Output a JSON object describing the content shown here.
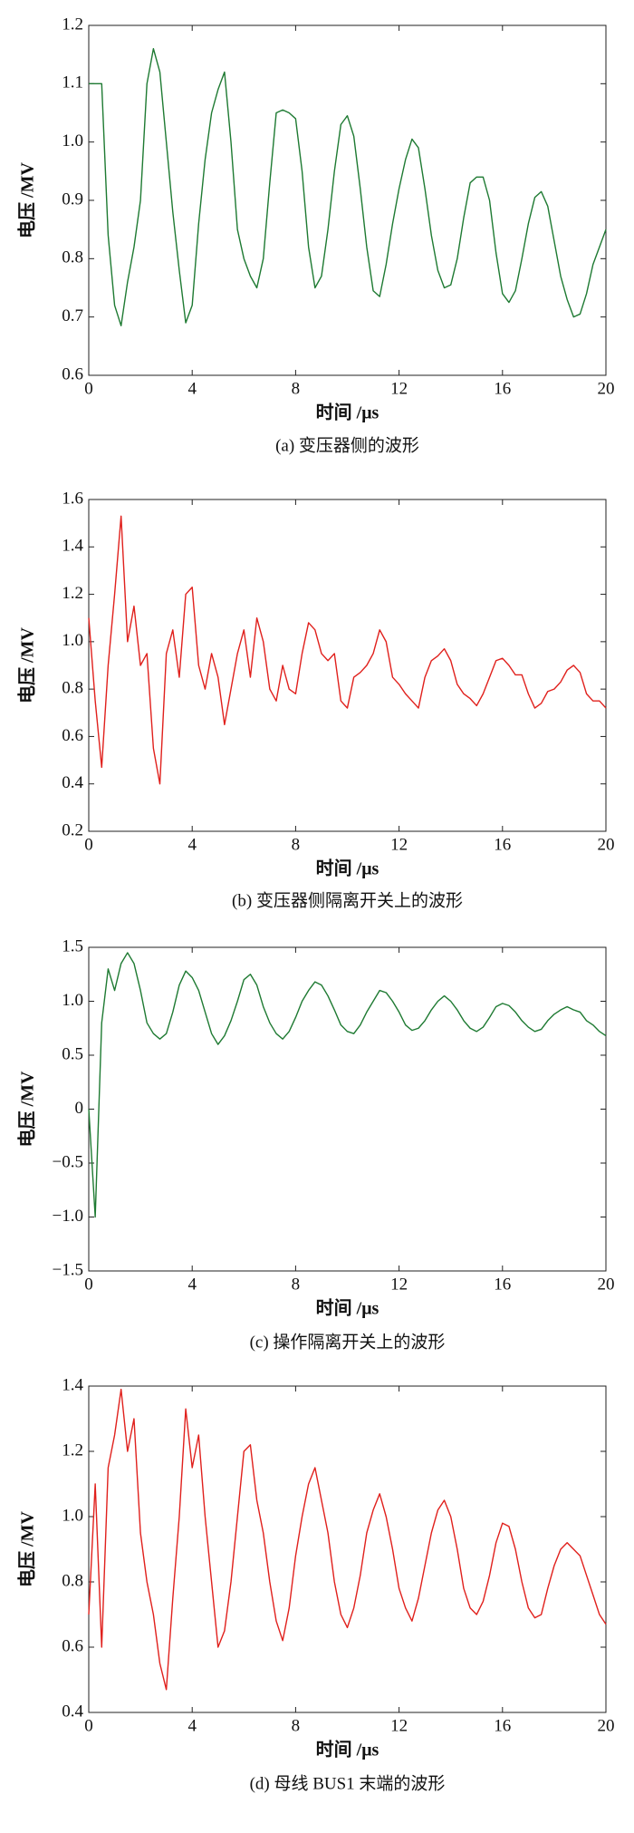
{
  "chart_data": [
    {
      "type": "line",
      "x_label": "时间 /μs",
      "y_label": "电压 /MV",
      "caption": "(a) 变压器侧的波形",
      "color": "#1e7a32",
      "xlim": [
        0,
        20
      ],
      "xticks": [
        0,
        4,
        8,
        12,
        16,
        20
      ],
      "ylim": [
        0.6,
        1.2
      ],
      "yticks": [
        0.6,
        0.7,
        0.8,
        0.9,
        {
          "value": 1.0,
          "label": "1.0"
        },
        1.1,
        1.2
      ],
      "x": [
        0,
        0.25,
        0.5,
        0.75,
        1,
        1.25,
        1.5,
        1.75,
        2,
        2.25,
        2.5,
        2.75,
        3,
        3.25,
        3.5,
        3.75,
        4,
        4.25,
        4.5,
        4.75,
        5,
        5.25,
        5.5,
        5.75,
        6,
        6.25,
        6.5,
        6.75,
        7,
        7.25,
        7.5,
        7.75,
        8,
        8.25,
        8.5,
        8.75,
        9,
        9.25,
        9.5,
        9.75,
        10,
        10.25,
        10.5,
        10.75,
        11,
        11.25,
        11.5,
        11.75,
        12,
        12.25,
        12.5,
        12.75,
        13,
        13.25,
        13.5,
        13.75,
        14,
        14.25,
        14.5,
        14.75,
        15,
        15.25,
        15.5,
        15.75,
        16,
        16.25,
        16.5,
        16.75,
        17,
        17.25,
        17.5,
        17.75,
        18,
        18.25,
        18.5,
        18.75,
        19,
        19.25,
        19.5,
        19.75,
        20
      ],
      "values": [
        1.1,
        1.1,
        1.1,
        0.84,
        0.72,
        0.685,
        0.76,
        0.82,
        0.9,
        1.1,
        1.16,
        1.12,
        1.0,
        0.88,
        0.78,
        0.69,
        0.72,
        0.86,
        0.97,
        1.05,
        1.09,
        1.12,
        1.0,
        0.85,
        0.8,
        0.77,
        0.75,
        0.8,
        0.93,
        1.05,
        1.055,
        1.05,
        1.04,
        0.95,
        0.82,
        0.75,
        0.77,
        0.85,
        0.95,
        1.03,
        1.045,
        1.01,
        0.92,
        0.82,
        0.745,
        0.735,
        0.79,
        0.86,
        0.92,
        0.97,
        1.005,
        0.99,
        0.92,
        0.84,
        0.78,
        0.75,
        0.755,
        0.8,
        0.87,
        0.93,
        0.94,
        0.94,
        0.9,
        0.81,
        0.74,
        0.725,
        0.745,
        0.8,
        0.86,
        0.905,
        0.915,
        0.89,
        0.83,
        0.77,
        0.73,
        0.7,
        0.705,
        0.74,
        0.79,
        0.82,
        0.85
      ]
    },
    {
      "type": "line",
      "x_label": "时间 /μs",
      "y_label": "电压 /MV",
      "caption": "(b) 变压器侧隔离开关上的波形",
      "color": "#e0201c",
      "xlim": [
        0,
        20
      ],
      "xticks": [
        0,
        4,
        8,
        12,
        16,
        20
      ],
      "ylim": [
        0.2,
        1.6
      ],
      "yticks": [
        0.2,
        0.4,
        0.6,
        0.8,
        {
          "value": 1.0,
          "label": "1.0"
        },
        1.2,
        1.4,
        1.6
      ],
      "x": [
        0,
        0.25,
        0.5,
        0.75,
        1,
        1.25,
        1.5,
        1.75,
        2,
        2.25,
        2.5,
        2.75,
        3,
        3.25,
        3.5,
        3.75,
        4,
        4.25,
        4.5,
        4.75,
        5,
        5.25,
        5.5,
        5.75,
        6,
        6.25,
        6.5,
        6.75,
        7,
        7.25,
        7.5,
        7.75,
        8,
        8.25,
        8.5,
        8.75,
        9,
        9.25,
        9.5,
        9.75,
        10,
        10.25,
        10.5,
        10.75,
        11,
        11.25,
        11.5,
        11.75,
        12,
        12.25,
        12.5,
        12.75,
        13,
        13.25,
        13.5,
        13.75,
        14,
        14.25,
        14.5,
        14.75,
        15,
        15.25,
        15.5,
        15.75,
        16,
        16.25,
        16.5,
        16.75,
        17,
        17.25,
        17.5,
        17.75,
        18,
        18.25,
        18.5,
        18.75,
        19,
        19.25,
        19.5,
        19.75,
        20
      ],
      "values": [
        1.1,
        0.75,
        0.47,
        0.9,
        1.2,
        1.53,
        1.0,
        1.15,
        0.9,
        0.95,
        0.55,
        0.4,
        0.95,
        1.05,
        0.85,
        1.2,
        1.23,
        0.9,
        0.8,
        0.95,
        0.85,
        0.65,
        0.8,
        0.95,
        1.05,
        0.85,
        1.1,
        1.0,
        0.8,
        0.75,
        0.9,
        0.8,
        0.78,
        0.95,
        1.08,
        1.05,
        0.95,
        0.92,
        0.95,
        0.75,
        0.72,
        0.85,
        0.87,
        0.9,
        0.95,
        1.05,
        1.0,
        0.85,
        0.82,
        0.78,
        0.75,
        0.72,
        0.85,
        0.92,
        0.94,
        0.97,
        0.92,
        0.82,
        0.78,
        0.76,
        0.73,
        0.78,
        0.85,
        0.92,
        0.93,
        0.9,
        0.86,
        0.86,
        0.78,
        0.72,
        0.74,
        0.79,
        0.8,
        0.83,
        0.88,
        0.9,
        0.87,
        0.78,
        0.75,
        0.75,
        0.72
      ]
    },
    {
      "type": "line",
      "x_label": "时间 /μs",
      "y_label": "电压 /MV",
      "caption": "(c) 操作隔离开关上的波形",
      "color": "#1e7a32",
      "xlim": [
        0,
        20
      ],
      "xticks": [
        0,
        4,
        8,
        12,
        16,
        20
      ],
      "ylim": [
        -1.5,
        1.5
      ],
      "yticks": [
        {
          "value": -1.5,
          "label": "−1.5"
        },
        {
          "value": -1.0,
          "label": "−1.0"
        },
        {
          "value": -0.5,
          "label": "−0.5"
        },
        0,
        0.5,
        {
          "value": 1.0,
          "label": "1.0"
        },
        1.5
      ],
      "x": [
        0,
        0.25,
        0.5,
        0.75,
        1,
        1.25,
        1.5,
        1.75,
        2,
        2.25,
        2.5,
        2.75,
        3,
        3.25,
        3.5,
        3.75,
        4,
        4.25,
        4.5,
        4.75,
        5,
        5.25,
        5.5,
        5.75,
        6,
        6.25,
        6.5,
        6.75,
        7,
        7.25,
        7.5,
        7.75,
        8,
        8.25,
        8.5,
        8.75,
        9,
        9.25,
        9.5,
        9.75,
        10,
        10.25,
        10.5,
        10.75,
        11,
        11.25,
        11.5,
        11.75,
        12,
        12.25,
        12.5,
        12.75,
        13,
        13.25,
        13.5,
        13.75,
        14,
        14.25,
        14.5,
        14.75,
        15,
        15.25,
        15.5,
        15.75,
        16,
        16.25,
        16.5,
        16.75,
        17,
        17.25,
        17.5,
        17.75,
        18,
        18.25,
        18.5,
        18.75,
        19,
        19.25,
        19.5,
        19.75,
        20
      ],
      "values": [
        0,
        -1.0,
        0.8,
        1.3,
        1.1,
        1.35,
        1.45,
        1.35,
        1.1,
        0.8,
        0.7,
        0.65,
        0.7,
        0.9,
        1.15,
        1.28,
        1.22,
        1.1,
        0.9,
        0.7,
        0.6,
        0.68,
        0.82,
        1.0,
        1.2,
        1.25,
        1.15,
        0.95,
        0.8,
        0.7,
        0.65,
        0.72,
        0.85,
        1.0,
        1.1,
        1.18,
        1.15,
        1.05,
        0.92,
        0.78,
        0.72,
        0.7,
        0.78,
        0.9,
        1.0,
        1.1,
        1.08,
        1.0,
        0.9,
        0.78,
        0.73,
        0.75,
        0.82,
        0.92,
        1.0,
        1.05,
        1.0,
        0.92,
        0.82,
        0.75,
        0.72,
        0.76,
        0.85,
        0.95,
        0.98,
        0.96,
        0.9,
        0.82,
        0.76,
        0.72,
        0.74,
        0.82,
        0.88,
        0.92,
        0.95,
        0.92,
        0.9,
        0.82,
        0.78,
        0.72,
        0.68
      ]
    },
    {
      "type": "line",
      "x_label": "时间 /μs",
      "y_label": "电压 /MV",
      "caption": "(d) 母线 BUS1 末端的波形",
      "color": "#e0201c",
      "xlim": [
        0,
        20
      ],
      "xticks": [
        0,
        4,
        8,
        12,
        16,
        20
      ],
      "ylim": [
        0.4,
        1.4
      ],
      "yticks": [
        0.4,
        0.6,
        0.8,
        {
          "value": 1.0,
          "label": "1.0"
        },
        1.2,
        1.4
      ],
      "x": [
        0,
        0.25,
        0.5,
        0.75,
        1,
        1.25,
        1.5,
        1.75,
        2,
        2.25,
        2.5,
        2.75,
        3,
        3.25,
        3.5,
        3.75,
        4,
        4.25,
        4.5,
        4.75,
        5,
        5.25,
        5.5,
        5.75,
        6,
        6.25,
        6.5,
        6.75,
        7,
        7.25,
        7.5,
        7.75,
        8,
        8.25,
        8.5,
        8.75,
        9,
        9.25,
        9.5,
        9.75,
        10,
        10.25,
        10.5,
        10.75,
        11,
        11.25,
        11.5,
        11.75,
        12,
        12.25,
        12.5,
        12.75,
        13,
        13.25,
        13.5,
        13.75,
        14,
        14.25,
        14.5,
        14.75,
        15,
        15.25,
        15.5,
        15.75,
        16,
        16.25,
        16.5,
        16.75,
        17,
        17.25,
        17.5,
        17.75,
        18,
        18.25,
        18.5,
        18.75,
        19,
        19.25,
        19.5,
        19.75,
        20
      ],
      "values": [
        0.7,
        1.1,
        0.6,
        1.15,
        1.25,
        1.39,
        1.2,
        1.3,
        0.95,
        0.8,
        0.7,
        0.55,
        0.47,
        0.75,
        1.0,
        1.33,
        1.15,
        1.25,
        1.0,
        0.8,
        0.6,
        0.65,
        0.8,
        1.0,
        1.2,
        1.22,
        1.05,
        0.95,
        0.8,
        0.68,
        0.62,
        0.72,
        0.88,
        1.0,
        1.1,
        1.15,
        1.05,
        0.95,
        0.8,
        0.7,
        0.66,
        0.72,
        0.82,
        0.95,
        1.02,
        1.07,
        1.0,
        0.9,
        0.78,
        0.72,
        0.68,
        0.75,
        0.85,
        0.95,
        1.02,
        1.05,
        1.0,
        0.9,
        0.78,
        0.72,
        0.7,
        0.74,
        0.82,
        0.92,
        0.98,
        0.97,
        0.9,
        0.8,
        0.72,
        0.69,
        0.7,
        0.78,
        0.85,
        0.9,
        0.92,
        0.9,
        0.88,
        0.82,
        0.76,
        0.7,
        0.67
      ]
    }
  ]
}
